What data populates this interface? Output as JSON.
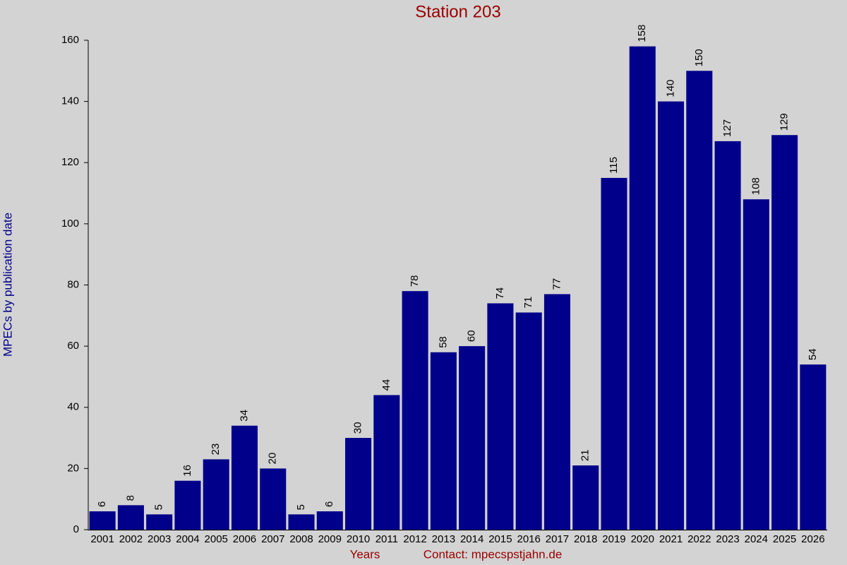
{
  "chart_data": {
    "type": "bar",
    "title": "Station 203",
    "ylabel": "MPECs by publication date",
    "xlabel": "Years",
    "annotation": "Contact: mpecspstjahn.de",
    "categories": [
      "2001",
      "2002",
      "2003",
      "2004",
      "2005",
      "2006",
      "2007",
      "2008",
      "2009",
      "2010",
      "2011",
      "2012",
      "2013",
      "2014",
      "2015",
      "2016",
      "2017",
      "2018",
      "2019",
      "2020",
      "2021",
      "2022",
      "2023",
      "2024",
      "2025",
      "2026"
    ],
    "values": [
      6,
      8,
      5,
      16,
      23,
      34,
      20,
      5,
      6,
      30,
      44,
      78,
      58,
      60,
      74,
      71,
      77,
      21,
      115,
      158,
      140,
      150,
      127,
      108,
      129,
      54
    ],
    "color": "#00008b",
    "ylim": [
      0,
      160
    ],
    "yticks": [
      0,
      20,
      40,
      60,
      80,
      100,
      120,
      140,
      160
    ],
    "grid": false
  }
}
